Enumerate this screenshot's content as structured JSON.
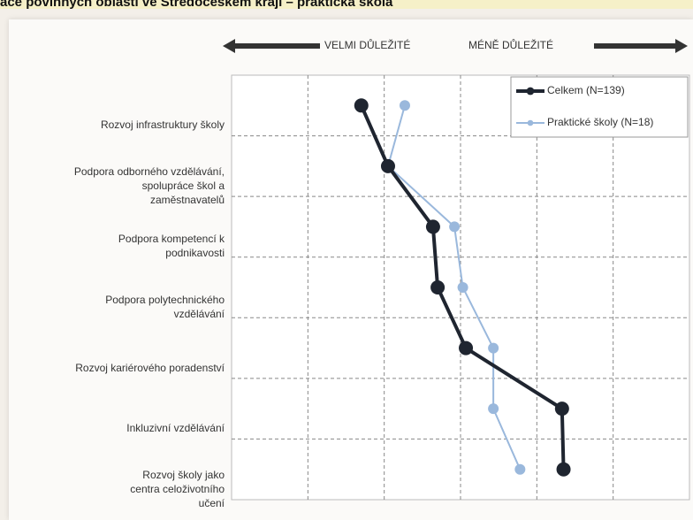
{
  "chart_data": {
    "type": "line",
    "orientation": "horizontal",
    "title": "ace povinných oblastí ve Středočeském kraji – praktická škola",
    "annotations": [
      "VELMI DŮLEŽITÉ",
      "MÉNĚ DŮLEŽITÉ"
    ],
    "categories": [
      "Rozvoj infrastruktury školy",
      "Podpora odborného vzdělávání,\nspolupráce škol a\nzaměstnavatelů",
      "Podpora kompetencí k\npodnikavosti",
      "Podpora polytechnického\nvzdělávání",
      "Rozvoj kariérového poradenství",
      "Inkluzivní vzdělávání",
      "Rozvoj školy jako\ncentra celoživotního\nučení"
    ],
    "series": [
      {
        "name": "Celkem (N=139)",
        "color": "#1f2530",
        "values": [
          1.7,
          2.05,
          2.64,
          2.7,
          3.07,
          4.33,
          4.35
        ]
      },
      {
        "name": "Praktické školy (N=18)",
        "color": "#9ab8dc",
        "values": [
          2.27,
          2.05,
          2.92,
          3.03,
          3.43,
          3.43,
          3.78
        ]
      }
    ],
    "xlim": [
      0,
      6
    ],
    "xticks": [
      1,
      2,
      3,
      4,
      5
    ],
    "grid": true,
    "legend": "upper right"
  }
}
